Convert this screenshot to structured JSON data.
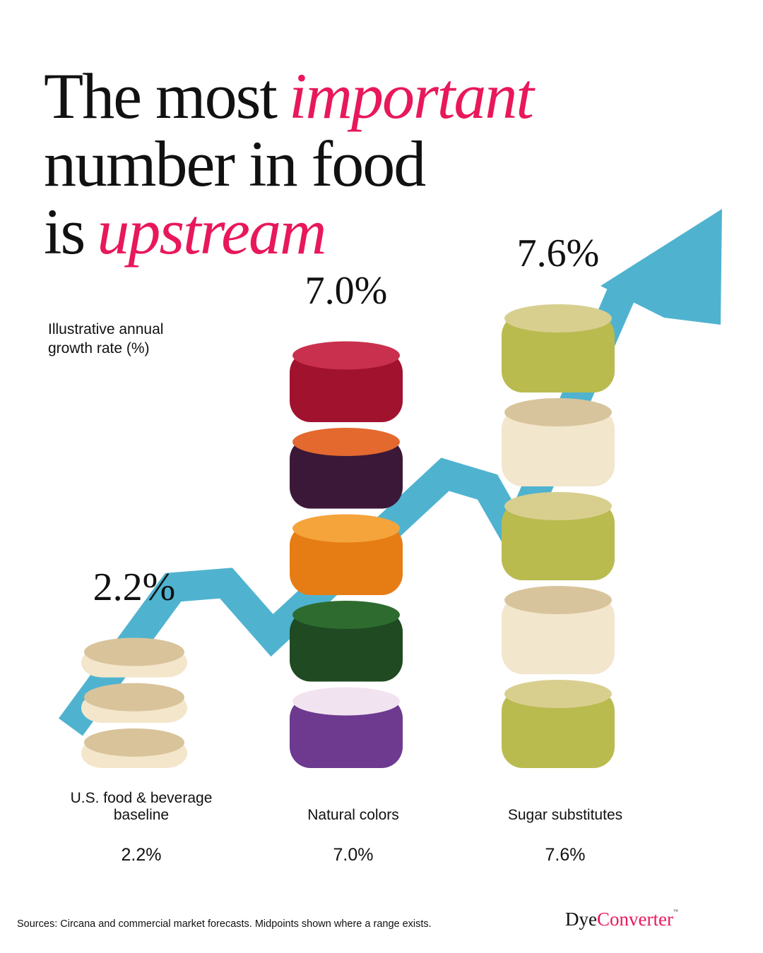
{
  "chart_data": {
    "type": "bar",
    "title": [
      [
        {
          "text": "The most"
        },
        {
          "text": "important",
          "emphasis": true
        }
      ],
      [
        {
          "text": "number in food"
        }
      ],
      [
        {
          "text": "is"
        },
        {
          "text": "upstream",
          "emphasis": true
        }
      ]
    ],
    "emphasis_color": "#e8185a",
    "y_label": "Illustrative annual growth rate (%)",
    "categories": [
      "U.S. food & beverage baseline",
      "Natural colors",
      "Sugar substitutes"
    ],
    "values": [
      2.2,
      7.0,
      7.6
    ],
    "value_labels": [
      "2.2%",
      "7.0%",
      "7.6%"
    ],
    "ylim": [
      0,
      8
    ],
    "arrow_color": "#4fb3d0",
    "source": "Sources: Circana and commercial market forecasts. Midpoints shown where a range exists.",
    "brand": [
      "Dye",
      "Converter"
    ],
    "brand_mark": "™"
  }
}
